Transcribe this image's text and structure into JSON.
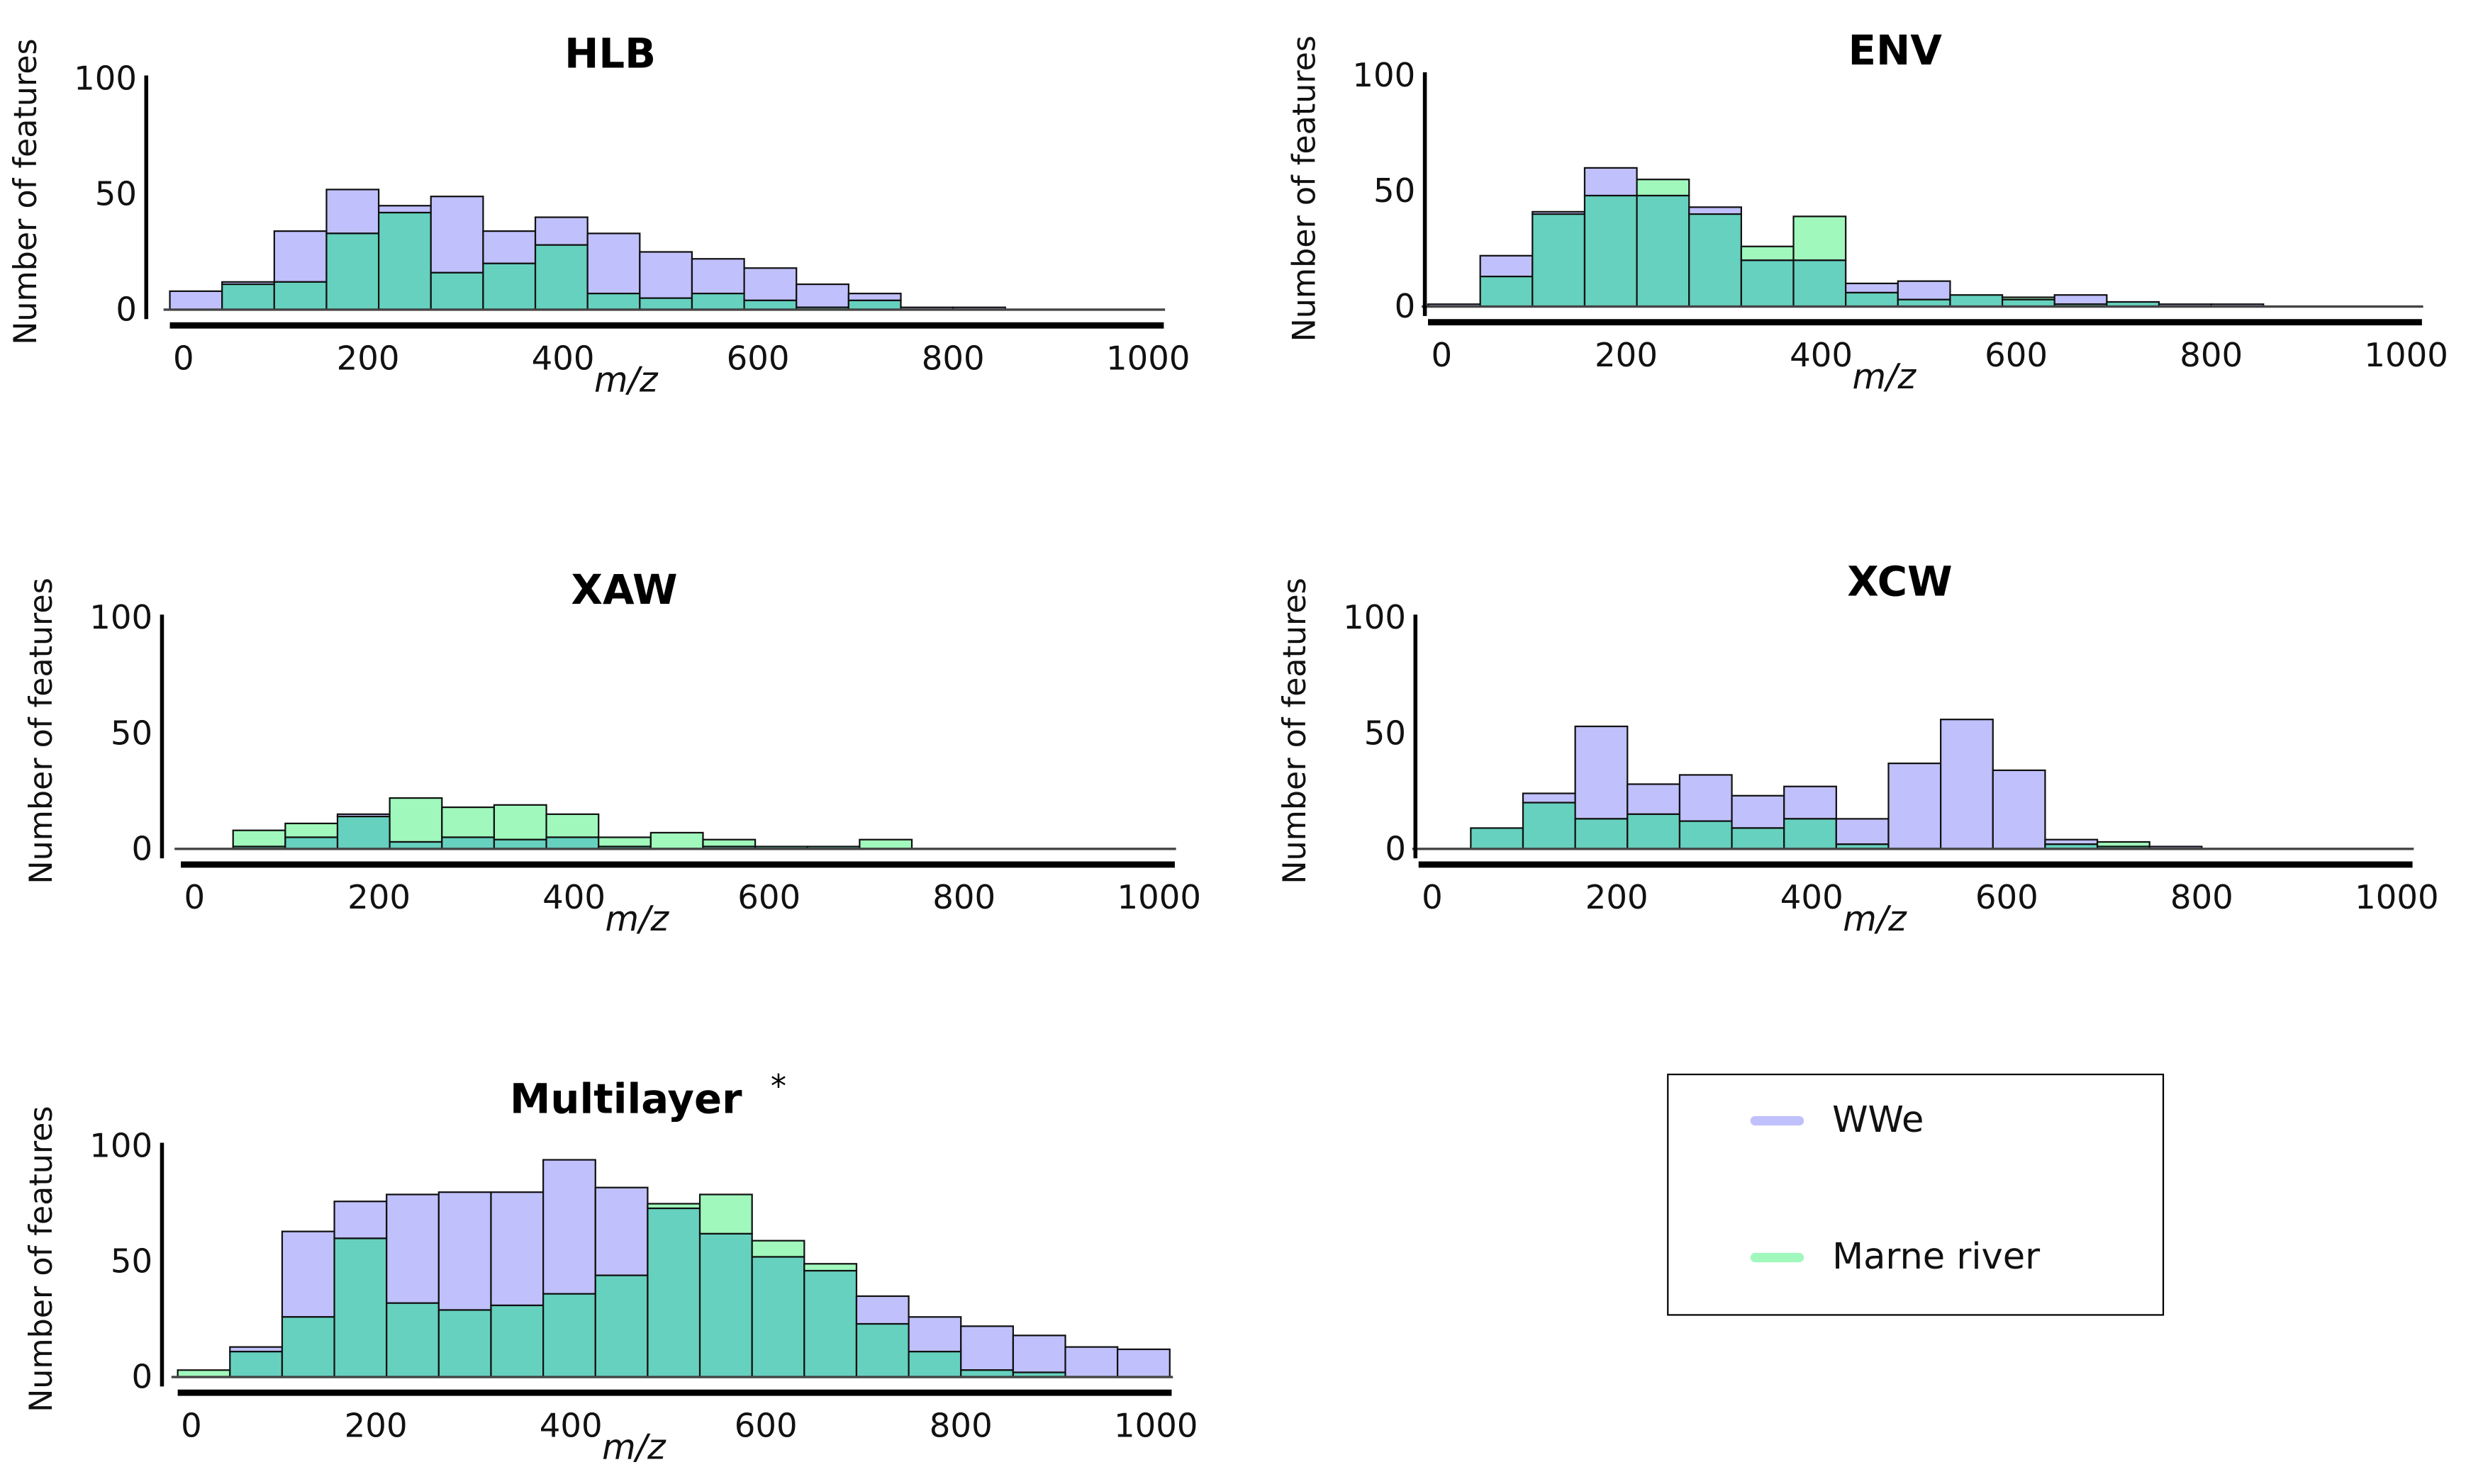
{
  "chart_data": [
    {
      "type": "bar",
      "title": "HLB",
      "xlabel": "m/z",
      "ylabel": "Number of features",
      "xlim": [
        0,
        1000
      ],
      "ylim": [
        0,
        100
      ],
      "xticks": [
        "0",
        "200",
        "400",
        "600",
        "800",
        "1000"
      ],
      "yticks": [
        "0",
        "50",
        "100"
      ],
      "bin_width": 52.5,
      "series": [
        {
          "name": "WWe",
          "values": [
            8,
            12,
            34,
            52,
            45,
            49,
            34,
            40,
            33,
            25,
            22,
            18,
            11,
            7,
            1,
            1,
            0,
            0,
            0
          ]
        },
        {
          "name": "Marne river",
          "values": [
            0,
            11,
            12,
            33,
            42,
            16,
            20,
            28,
            7,
            5,
            7,
            4,
            1,
            4,
            0,
            0,
            0,
            0,
            0
          ]
        }
      ]
    },
    {
      "type": "bar",
      "title": "ENV",
      "xlabel": "m/z",
      "ylabel": "Number of features",
      "xlim": [
        0,
        1000
      ],
      "ylim": [
        0,
        100
      ],
      "xticks": [
        "0",
        "200",
        "400",
        "600",
        "800",
        "1000"
      ],
      "yticks": [
        "0",
        "50",
        "100"
      ],
      "bin_width": 52.5,
      "series": [
        {
          "name": "WWe",
          "values": [
            1,
            22,
            41,
            60,
            48,
            43,
            20,
            20,
            10,
            11,
            5,
            3,
            5,
            2,
            1,
            1,
            0,
            0,
            0
          ]
        },
        {
          "name": "Marne river",
          "values": [
            0,
            13,
            40,
            48,
            55,
            40,
            26,
            39,
            6,
            3,
            5,
            4,
            1,
            2,
            0,
            0,
            0,
            0,
            0
          ]
        }
      ]
    },
    {
      "type": "bar",
      "title": "XAW",
      "xlabel": "m/z",
      "ylabel": "Number of features",
      "xlim": [
        0,
        1000
      ],
      "ylim": [
        0,
        100
      ],
      "xticks": [
        "0",
        "200",
        "400",
        "600",
        "800",
        "1000"
      ],
      "yticks": [
        "0",
        "50",
        "100"
      ],
      "bin_width": 52.5,
      "series": [
        {
          "name": "WWe",
          "values": [
            0,
            1,
            5,
            15,
            3,
            5,
            4,
            5,
            1,
            0,
            1,
            1,
            1,
            0,
            0,
            0,
            0,
            0,
            0
          ]
        },
        {
          "name": "Marne river",
          "values": [
            0,
            8,
            11,
            14,
            22,
            18,
            19,
            15,
            5,
            7,
            4,
            1,
            1,
            4,
            0,
            0,
            0,
            0,
            0
          ]
        }
      ]
    },
    {
      "type": "bar",
      "title": "XCW",
      "xlabel": "m/z",
      "ylabel": "Number of features",
      "xlim": [
        0,
        1000
      ],
      "ylim": [
        0,
        100
      ],
      "xticks": [
        "0",
        "200",
        "400",
        "600",
        "800",
        "1000"
      ],
      "yticks": [
        "0",
        "50",
        "100"
      ],
      "bin_width": 52.5,
      "series": [
        {
          "name": "WWe",
          "values": [
            0,
            9,
            24,
            53,
            28,
            32,
            23,
            27,
            13,
            37,
            56,
            34,
            4,
            1,
            1,
            0,
            0,
            0,
            0
          ]
        },
        {
          "name": "Marne river",
          "values": [
            0,
            9,
            20,
            13,
            15,
            12,
            9,
            13,
            2,
            0,
            0,
            0,
            2,
            3,
            0,
            0,
            0,
            0,
            0
          ]
        }
      ]
    },
    {
      "type": "bar",
      "title": "Multilayer",
      "title_mark": "*",
      "xlabel": "m/z",
      "ylabel": "Number of features",
      "xlim": [
        0,
        1000
      ],
      "ylim": [
        0,
        100
      ],
      "xticks": [
        "0",
        "200",
        "400",
        "600",
        "800",
        "1000"
      ],
      "yticks": [
        "0",
        "50",
        "100"
      ],
      "bin_width": 52.5,
      "series": [
        {
          "name": "WWe",
          "values": [
            0,
            13,
            63,
            76,
            79,
            80,
            80,
            94,
            82,
            73,
            62,
            52,
            46,
            35,
            26,
            22,
            18,
            13,
            12
          ]
        },
        {
          "name": "Marne river",
          "values": [
            3,
            11,
            26,
            60,
            32,
            29,
            31,
            36,
            44,
            75,
            79,
            59,
            49,
            23,
            11,
            3,
            2,
            0,
            0
          ]
        }
      ]
    }
  ],
  "legend": {
    "items": [
      {
        "label": "WWe",
        "color": "#c0c0fc"
      },
      {
        "label": "Marne river",
        "color": "#a0f8bc"
      }
    ]
  },
  "colors": {
    "wwe": "#c0c0fc",
    "marne": "#a0f8bc",
    "overlap": "#66d1bf"
  }
}
